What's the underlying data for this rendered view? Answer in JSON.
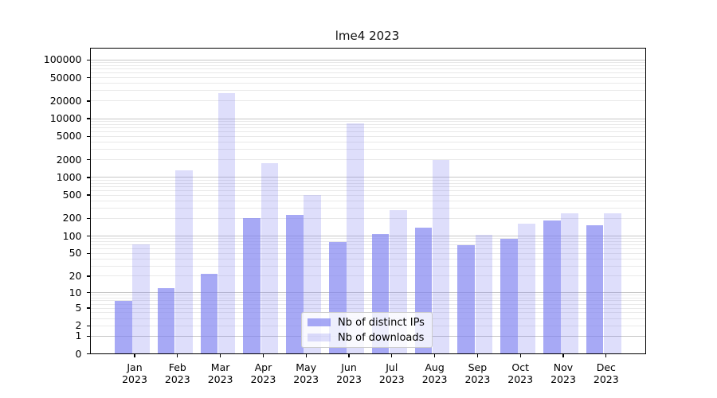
{
  "chart_data": {
    "type": "bar",
    "title": "lme4 2023",
    "x_categories": [
      "Jan 2023",
      "Feb 2023",
      "Mar 2023",
      "Apr 2023",
      "May 2023",
      "Jun 2023",
      "Jul 2023",
      "Aug 2023",
      "Sep 2023",
      "Oct 2023",
      "Nov 2023",
      "Dec 2023"
    ],
    "series": [
      {
        "name": "Nb of distinct IPs",
        "color": "rgba(122,124,240,0.66)",
        "values": [
          7,
          12,
          22,
          205,
          230,
          80,
          108,
          140,
          70,
          90,
          185,
          155
        ]
      },
      {
        "name": "Nb of downloads",
        "color": "rgba(122,124,240,0.25)",
        "values": [
          72,
          1320,
          27000,
          1750,
          500,
          8300,
          275,
          1980,
          105,
          165,
          245,
          245
        ]
      }
    ],
    "yscale": "log10(1+x)",
    "ytick_values": [
      0,
      1,
      2,
      5,
      10,
      20,
      50,
      100,
      200,
      500,
      1000,
      2000,
      5000,
      10000,
      20000,
      50000,
      100000
    ],
    "ylim": [
      0,
      150000
    ],
    "xlabel": "",
    "ylabel": "",
    "grid": true,
    "accent_color": "#7a7cf0",
    "grid_minor_color": "#e9e9e9",
    "grid_decade_color": "#c6c6c6",
    "legend_position": "lower center"
  }
}
